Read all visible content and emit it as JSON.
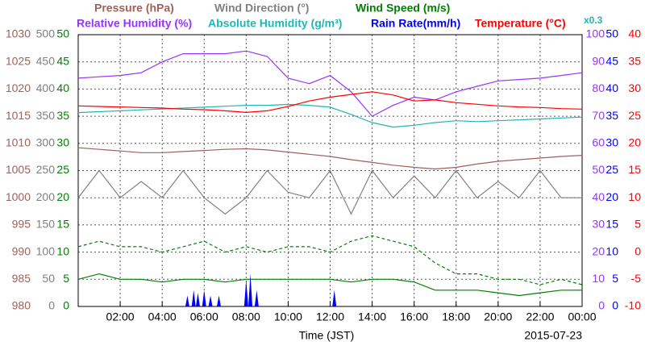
{
  "chart_data": {
    "type": "line",
    "x_label": "Time (JST)",
    "date": "2015-07-23",
    "xlim": [
      0,
      24
    ],
    "xticks": [
      {
        "value": 2,
        "label": "02:00"
      },
      {
        "value": 4,
        "label": "04:00"
      },
      {
        "value": 6,
        "label": "06:00"
      },
      {
        "value": 8,
        "label": "08:00"
      },
      {
        "value": 10,
        "label": "10:00"
      },
      {
        "value": 12,
        "label": "12:00"
      },
      {
        "value": 14,
        "label": "14:00"
      },
      {
        "value": 16,
        "label": "16:00"
      },
      {
        "value": 18,
        "label": "18:00"
      },
      {
        "value": 20,
        "label": "20:00"
      },
      {
        "value": 22,
        "label": "22:00"
      },
      {
        "value": 24,
        "label": "00:00"
      }
    ],
    "grid": true,
    "x": [
      0,
      1,
      2,
      3,
      4,
      5,
      6,
      7,
      8,
      9,
      10,
      11,
      12,
      13,
      14,
      15,
      16,
      17,
      18,
      19,
      20,
      21,
      22,
      23,
      24
    ],
    "axes": [
      {
        "side": "left",
        "color": "#a0605a",
        "ylim": [
          980,
          1030
        ],
        "yticks": [
          980,
          985,
          990,
          995,
          1000,
          1005,
          1010,
          1015,
          1020,
          1025,
          1030
        ]
      },
      {
        "side": "left",
        "color": "#808080",
        "ylim": [
          0,
          500
        ],
        "yticks": [
          0,
          50,
          100,
          150,
          200,
          250,
          300,
          350,
          400,
          450,
          500
        ]
      },
      {
        "side": "left",
        "color": "#008000",
        "ylim": [
          0,
          50
        ],
        "yticks": [
          0,
          5,
          10,
          15,
          20,
          25,
          30,
          35,
          40,
          45,
          50
        ]
      },
      {
        "side": "right",
        "color": "#9933ff",
        "ylim": [
          0,
          100
        ],
        "yticks": [
          0,
          10,
          20,
          30,
          40,
          50,
          60,
          70,
          80,
          90,
          100
        ]
      },
      {
        "side": "right",
        "color": "#0000ff",
        "ylim": [
          0,
          50
        ],
        "yticks": [
          0,
          5,
          10,
          15,
          20,
          25,
          30,
          35,
          40,
          45,
          50
        ]
      },
      {
        "side": "right",
        "color": "#ff0000",
        "ylim": [
          -10,
          40
        ],
        "yticks": [
          -10,
          -5,
          0,
          5,
          10,
          15,
          20,
          25,
          30,
          35,
          40
        ]
      }
    ],
    "series": [
      {
        "name": "Pressure (hPa)",
        "color": "#a0605a",
        "axis": 0,
        "values": [
          1009.2,
          1008.9,
          1008.6,
          1008.3,
          1008.3,
          1008.5,
          1008.7,
          1008.9,
          1009.0,
          1008.8,
          1008.4,
          1008.0,
          1007.6,
          1007.0,
          1006.5,
          1006.0,
          1005.6,
          1005.3,
          1005.6,
          1006.2,
          1006.7,
          1007.0,
          1007.3,
          1007.6,
          1007.8
        ]
      },
      {
        "name": "Wind Direction (°)",
        "color": "#808080",
        "axis": 1,
        "values": [
          200,
          250,
          200,
          230,
          200,
          250,
          200,
          170,
          200,
          250,
          210,
          200,
          250,
          170,
          250,
          200,
          240,
          200,
          250,
          200,
          230,
          200,
          250,
          200,
          200
        ]
      },
      {
        "name": "Wind Speed (m/s)",
        "color": "#008000",
        "axis": 2,
        "values": [
          5,
          6,
          5,
          5,
          4.5,
          5,
          5,
          4.5,
          5,
          5,
          5,
          5,
          5,
          4.5,
          5,
          5,
          4.5,
          3,
          3,
          3,
          2.5,
          2,
          2.5,
          3,
          3
        ],
        "max_values": [
          11,
          12,
          11,
          11,
          10,
          11,
          12,
          10,
          11,
          10,
          11,
          11,
          10,
          12,
          13,
          12,
          11,
          8,
          6,
          6,
          5,
          5,
          4,
          5,
          4
        ]
      },
      {
        "name": "Relative Humidity (%)",
        "color": "#9933ff",
        "axis": 3,
        "values": [
          84,
          84.5,
          85,
          86,
          90,
          93,
          93,
          93,
          94,
          92,
          84,
          82,
          85,
          79,
          70,
          74,
          77,
          76,
          79,
          81,
          83,
          83.5,
          84,
          85,
          86
        ]
      },
      {
        "name": "Absolute Humidity (g/m³)",
        "color": "#22b5b5",
        "axis": 3,
        "factor": {
          "value": 0.3,
          "label": "x0.3"
        },
        "values": [
          21.4,
          21.5,
          21.6,
          21.7,
          21.8,
          21.9,
          22.0,
          22.1,
          22.2,
          22.2,
          22.3,
          22.2,
          22.0,
          21.2,
          20.3,
          19.8,
          20.0,
          20.3,
          20.5,
          20.4,
          20.5,
          20.6,
          20.7,
          20.8,
          20.9
        ]
      },
      {
        "name": "Rain Rate(mm/h)",
        "color": "#0000ff",
        "axis": 4,
        "style": "spikes",
        "x": [
          5.2,
          5.5,
          5.7,
          6.0,
          6.3,
          6.7,
          8.0,
          8.2,
          8.5,
          12.2
        ],
        "values": [
          2,
          3,
          2.5,
          3,
          2,
          2,
          5,
          6,
          3,
          3
        ]
      },
      {
        "name": "Temperature (°C)",
        "color": "#ff0000",
        "axis": 5,
        "values": [
          26.9,
          26.8,
          26.7,
          26.6,
          26.5,
          26.3,
          26.2,
          26.0,
          25.7,
          26.0,
          26.8,
          27.8,
          28.5,
          29.0,
          29.5,
          28.9,
          27.8,
          28.0,
          27.5,
          27.2,
          26.9,
          26.7,
          26.6,
          26.4,
          26.3
        ]
      }
    ]
  }
}
